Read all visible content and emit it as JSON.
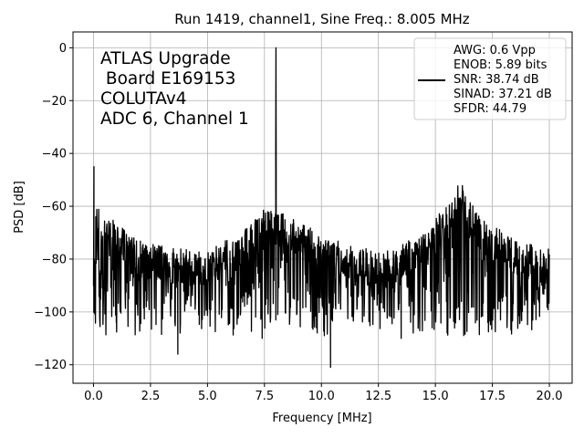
{
  "chart_data": {
    "type": "line",
    "title": "Run 1419, channel1, Sine Freq.: 8.005 MHz",
    "xlabel": "Frequency [MHz]",
    "ylabel": "PSD [dB]",
    "xlim": [
      -0.9,
      21.0
    ],
    "ylim": [
      -127,
      6
    ],
    "xticks": [
      0.0,
      2.5,
      5.0,
      7.5,
      10.0,
      12.5,
      15.0,
      17.5,
      20.0
    ],
    "xtick_labels": [
      "0.0",
      "2.5",
      "5.0",
      "7.5",
      "10.0",
      "12.5",
      "15.0",
      "17.5",
      "20.0"
    ],
    "yticks": [
      0,
      -20,
      -40,
      -60,
      -80,
      -100,
      -120
    ],
    "ytick_labels": [
      "0",
      "−20",
      "−40",
      "−60",
      "−80",
      "−100",
      "−120"
    ],
    "grid": true,
    "annotation": [
      "ATLAS Upgrade",
      " Board E169153",
      "COLUTAv4",
      "ADC 6, Channel 1"
    ],
    "legend": {
      "placement": "upper right",
      "lines": [
        "AWG: 0.6 Vpp",
        "ENOB: 5.89 bits",
        "SNR: 38.74 dB",
        "SINAD: 37.21 dB",
        "SFDR: 44.79"
      ]
    },
    "series": [
      {
        "name": "PSD",
        "color": "#000000",
        "peak": {
          "x": 8.005,
          "y": 0
        },
        "spur_dc": {
          "x": 0.02,
          "y": -45
        },
        "envelope_points": [
          {
            "x": 0.0,
            "y": -85
          },
          {
            "x": 0.1,
            "y": -60
          },
          {
            "x": 0.5,
            "y": -63
          },
          {
            "x": 1.0,
            "y": -66
          },
          {
            "x": 1.5,
            "y": -70
          },
          {
            "x": 2.0,
            "y": -73
          },
          {
            "x": 3.0,
            "y": -75
          },
          {
            "x": 4.0,
            "y": -76
          },
          {
            "x": 5.0,
            "y": -77
          },
          {
            "x": 6.0,
            "y": -72
          },
          {
            "x": 7.0,
            "y": -66
          },
          {
            "x": 7.5,
            "y": -60
          },
          {
            "x": 8.5,
            "y": -63
          },
          {
            "x": 9.0,
            "y": -66
          },
          {
            "x": 10.0,
            "y": -70
          },
          {
            "x": 11.0,
            "y": -74
          },
          {
            "x": 12.0,
            "y": -76
          },
          {
            "x": 13.0,
            "y": -77
          },
          {
            "x": 14.0,
            "y": -72
          },
          {
            "x": 15.0,
            "y": -64
          },
          {
            "x": 15.8,
            "y": -56
          },
          {
            "x": 16.0,
            "y": -48
          },
          {
            "x": 16.5,
            "y": -58
          },
          {
            "x": 17.0,
            "y": -63
          },
          {
            "x": 18.0,
            "y": -70
          },
          {
            "x": 19.0,
            "y": -74
          },
          {
            "x": 20.0,
            "y": -76
          }
        ],
        "floor_min": -105,
        "notable_dips": [
          {
            "x": 1.0,
            "y": -104
          },
          {
            "x": 3.7,
            "y": -116
          },
          {
            "x": 7.4,
            "y": -110
          },
          {
            "x": 10.4,
            "y": -121
          },
          {
            "x": 13.5,
            "y": -110
          },
          {
            "x": 17.3,
            "y": -104
          }
        ]
      }
    ]
  }
}
